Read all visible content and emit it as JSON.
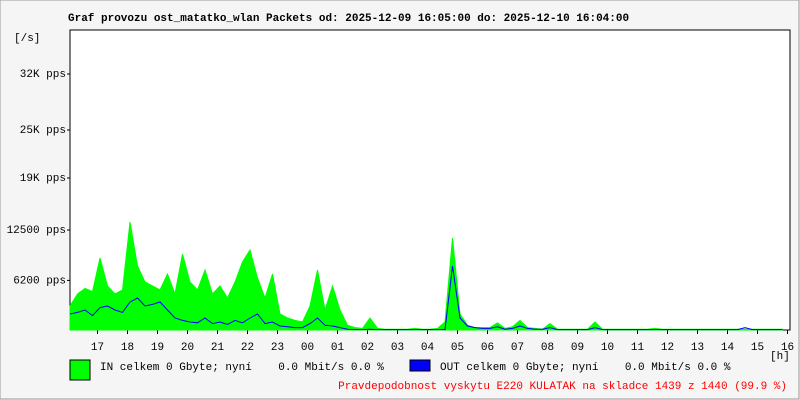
{
  "chart_data": {
    "type": "area",
    "title": "Graf provozu ost_matatko_wlan Packets od: 2025-12-09 16:05:00 do: 2025-12-10 16:04:00",
    "y_label": "[/s]",
    "x_label": "[h]",
    "footer": "Pravdepodobnost vyskytu E220 KULATAK na skladce 1439 z 1440 (99.9 %)",
    "xlim": [
      0,
      24
    ],
    "ylim": [
      0,
      37500
    ],
    "yticks": [
      {
        "value": 6200,
        "label": "6200 pps"
      },
      {
        "value": 12500,
        "label": "12500 pps"
      },
      {
        "value": 19000,
        "label": "19K pps"
      },
      {
        "value": 25000,
        "label": "25K pps"
      },
      {
        "value": 32000,
        "label": "32K pps"
      }
    ],
    "xticks": [
      {
        "value": 0.917,
        "label": "17"
      },
      {
        "value": 1.917,
        "label": "18"
      },
      {
        "value": 2.917,
        "label": "19"
      },
      {
        "value": 3.917,
        "label": "20"
      },
      {
        "value": 4.917,
        "label": "21"
      },
      {
        "value": 5.917,
        "label": "22"
      },
      {
        "value": 6.917,
        "label": "23"
      },
      {
        "value": 7.917,
        "label": "00"
      },
      {
        "value": 8.917,
        "label": "01"
      },
      {
        "value": 9.917,
        "label": "02"
      },
      {
        "value": 10.917,
        "label": "03"
      },
      {
        "value": 11.917,
        "label": "04"
      },
      {
        "value": 12.917,
        "label": "05"
      },
      {
        "value": 13.917,
        "label": "06"
      },
      {
        "value": 14.917,
        "label": "07"
      },
      {
        "value": 15.917,
        "label": "08"
      },
      {
        "value": 16.917,
        "label": "09"
      },
      {
        "value": 17.917,
        "label": "10"
      },
      {
        "value": 18.917,
        "label": "11"
      },
      {
        "value": 19.917,
        "label": "12"
      },
      {
        "value": 20.917,
        "label": "13"
      },
      {
        "value": 21.917,
        "label": "14"
      },
      {
        "value": 22.917,
        "label": "15"
      },
      {
        "value": 23.917,
        "label": "16"
      }
    ],
    "x": [
      0,
      0.25,
      0.5,
      0.75,
      1,
      1.25,
      1.5,
      1.75,
      2,
      2.25,
      2.5,
      2.75,
      3,
      3.25,
      3.5,
      3.75,
      4,
      4.25,
      4.5,
      4.75,
      5,
      5.25,
      5.5,
      5.75,
      6,
      6.25,
      6.5,
      6.75,
      7,
      7.25,
      7.5,
      7.75,
      8,
      8.25,
      8.5,
      8.75,
      9,
      9.25,
      9.5,
      9.75,
      10,
      10.25,
      10.5,
      10.75,
      11,
      11.25,
      11.5,
      11.75,
      12,
      12.25,
      12.5,
      12.75,
      13,
      13.25,
      13.5,
      13.75,
      14,
      14.25,
      14.5,
      14.75,
      15,
      15.25,
      15.5,
      15.75,
      16,
      16.25,
      16.5,
      16.75,
      17,
      17.25,
      17.5,
      17.75,
      18,
      18.25,
      18.5,
      18.75,
      19,
      19.25,
      19.5,
      19.75,
      20,
      20.25,
      20.5,
      20.75,
      21,
      21.25,
      21.5,
      21.75,
      22,
      22.25,
      22.5,
      22.75,
      23,
      23.25,
      23.5,
      23.75
    ],
    "series": [
      {
        "name": "IN celkem 0 Gbyte; nyní    0.0 Mbit/s 0.0 %",
        "color": "#00ff00",
        "fill": true,
        "values": [
          3000,
          4500,
          5200,
          4800,
          9000,
          5500,
          4500,
          5000,
          13500,
          8000,
          6000,
          5500,
          5000,
          7000,
          4500,
          9500,
          6000,
          5000,
          7500,
          4500,
          5500,
          4000,
          6000,
          8500,
          10000,
          6500,
          4000,
          7000,
          2000,
          1500,
          1200,
          1000,
          3000,
          7500,
          2500,
          5500,
          2500,
          600,
          300,
          200,
          1500,
          200,
          100,
          100,
          100,
          100,
          200,
          100,
          100,
          200,
          1000,
          11500,
          2000,
          600,
          300,
          300,
          300,
          900,
          200,
          400,
          1200,
          300,
          200,
          100,
          800,
          100,
          100,
          100,
          100,
          100,
          1000,
          100,
          100,
          100,
          100,
          100,
          100,
          100,
          200,
          100,
          100,
          100,
          100,
          100,
          100,
          100,
          100,
          100,
          100,
          100,
          100,
          100,
          100,
          100,
          100,
          100
        ]
      },
      {
        "name": "OUT celkem 0 Gbyte; nyní    0.0 Mbit/s 0.0 %",
        "color": "#0000ff",
        "fill": false,
        "values": [
          2000,
          2200,
          2500,
          1800,
          2800,
          3000,
          2500,
          2200,
          3500,
          4000,
          3000,
          3200,
          3500,
          2500,
          1500,
          1200,
          1000,
          900,
          1500,
          800,
          1000,
          700,
          1200,
          900,
          1500,
          2000,
          800,
          1000,
          500,
          400,
          300,
          300,
          800,
          1500,
          600,
          500,
          300,
          100,
          50,
          50,
          100,
          50,
          50,
          50,
          50,
          50,
          50,
          50,
          50,
          50,
          50,
          8000,
          1500,
          500,
          300,
          200,
          200,
          400,
          100,
          200,
          500,
          200,
          100,
          100,
          300,
          50,
          50,
          50,
          50,
          50,
          300,
          50,
          50,
          50,
          50,
          50,
          50,
          50,
          50,
          50,
          50,
          50,
          50,
          50,
          50,
          50,
          50,
          50,
          50,
          50,
          300,
          50,
          50,
          50,
          50,
          50
        ]
      }
    ]
  }
}
